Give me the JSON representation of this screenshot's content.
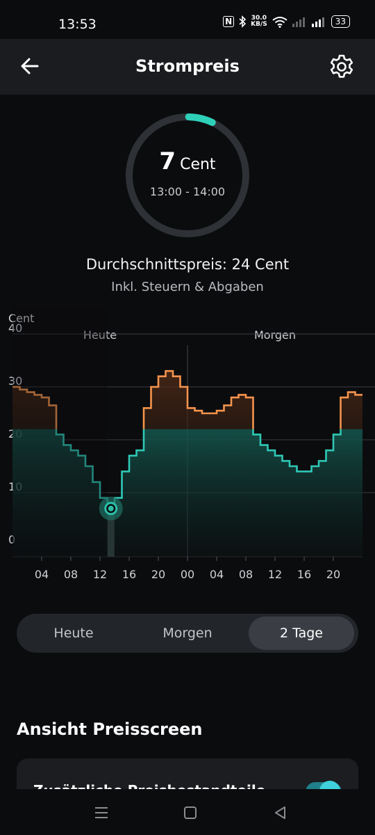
{
  "status": {
    "time": "13:53",
    "nfc": "N",
    "speed_value": "30.0",
    "speed_unit": "KB/S",
    "battery": "33"
  },
  "header": {
    "title": "Strompreis",
    "back_icon": "arrow-left-icon",
    "settings_icon": "gear-icon"
  },
  "current": {
    "value": "7",
    "unit": "Cent",
    "time_range": "13:00 - 14:00",
    "level": 0.07
  },
  "average": {
    "text": "Durchschnittspreis: 24 Cent",
    "note": "Inkl. Steuern & Abgaben"
  },
  "chart_data": {
    "type": "line",
    "ylabel": "Cent",
    "ylim": [
      0,
      40
    ],
    "yticks": [
      "40",
      "30",
      "20",
      "10",
      "0"
    ],
    "xticks": [
      "04",
      "08",
      "12",
      "16",
      "20",
      "00",
      "04",
      "08",
      "12",
      "16",
      "20"
    ],
    "day_labels": [
      "Heute",
      "Morgen"
    ],
    "x": [
      0,
      1,
      2,
      3,
      4,
      5,
      6,
      7,
      8,
      9,
      10,
      11,
      12,
      13,
      14,
      15,
      16,
      17,
      18,
      19,
      20,
      21,
      22,
      23,
      24,
      25,
      26,
      27,
      28,
      29,
      30,
      31,
      32,
      33,
      34,
      35,
      36,
      37,
      38,
      39,
      40,
      41,
      42,
      43,
      44,
      45,
      46,
      47
    ],
    "values": [
      30,
      29.5,
      29,
      28.5,
      28,
      26.5,
      21,
      19,
      18,
      17,
      15,
      12,
      9,
      7,
      9,
      14,
      17,
      18,
      26,
      30,
      32,
      33,
      32,
      30,
      26,
      25.5,
      25,
      25,
      25.5,
      26.5,
      28,
      28.5,
      28,
      21,
      19,
      18,
      17,
      16,
      15,
      14,
      14,
      15,
      16,
      18,
      21,
      28,
      29,
      28.5
    ],
    "threshold": 22,
    "current_index": 13,
    "colors": {
      "high": "#f5944d",
      "low": "#2fc8b5",
      "marker": "#2bbfa8"
    }
  },
  "segmented": {
    "options": [
      "Heute",
      "Morgen",
      "2 Tage"
    ],
    "selected": "2 Tage"
  },
  "section": {
    "title": "Ansicht Preisscreen",
    "card_label": "Zusätzliche Preisbestandteile"
  },
  "nav": {
    "menu_icon": "menu-icon",
    "home_icon": "home-icon",
    "back_icon": "back-triangle-icon"
  }
}
